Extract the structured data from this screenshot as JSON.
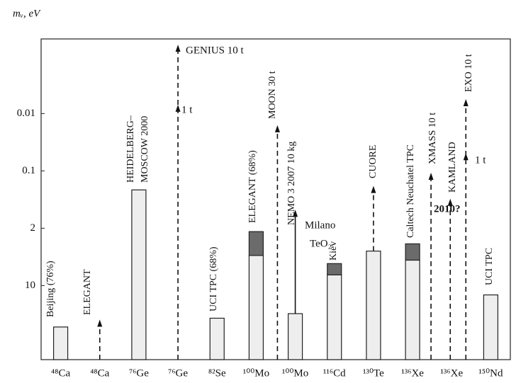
{
  "chart_data": {
    "type": "bar",
    "y_label": "mᵥ, eV",
    "categories": [
      "⁴⁸Ca",
      "⁴⁸Ca",
      "⁷⁶Ge",
      "⁷⁶Ge",
      "⁸²Se",
      "¹⁰⁰Mo",
      "¹⁰⁰Mo",
      "¹¹⁶Cd",
      "¹³⁰Te",
      "¹³⁶Xe",
      "¹³⁶Xe",
      "¹⁵⁰Nd"
    ],
    "series": [
      {
        "color": "#eeeeee",
        "values": [
          32,
          null,
          0.27,
          null,
          25,
          4.3,
          22,
          7.4,
          3.8,
          4.9,
          null,
          13
        ]
      },
      {
        "color": "#6b6b6b",
        "values": [
          null,
          null,
          null,
          null,
          null,
          2.2,
          null,
          5.4,
          null,
          3.1,
          null,
          null
        ]
      }
    ],
    "arrow_tips": [
      null,
      26,
      null,
      0.00063,
      null,
      0.016,
      0.76,
      null,
      0.22,
      0.11,
      0.43,
      null
    ],
    "arrow_mids": [
      null,
      null,
      null,
      0.007,
      null,
      null,
      null,
      null,
      null,
      null,
      null,
      null
    ],
    "arrow_line": [
      null,
      "dashed",
      null,
      "dashed",
      null,
      "dashed",
      "solid",
      null,
      "dashed",
      "dashed",
      "dashed",
      null
    ],
    "arrow_tips_2": [
      null,
      null,
      null,
      null,
      null,
      null,
      null,
      null,
      null,
      null,
      0.0056,
      null
    ],
    "arrow_mids_2": [
      null,
      null,
      null,
      null,
      null,
      null,
      null,
      null,
      null,
      null,
      0.049,
      null
    ],
    "ylim": [
      0.0005,
      80
    ],
    "yticks": [
      0.01,
      0.1,
      2,
      10
    ],
    "log_scale": true,
    "inverted": true,
    "annotations": [
      "Beijing (76%)",
      "ELEGANT",
      "HEIDELBERG–",
      "MOSCOW 2000",
      "GENIUS 10 t",
      "1 t",
      "UCI TPC (68%)",
      "ELEGANT (68%)",
      "MOON 30 t",
      "NEMO 3 2007 10 kg",
      "Milano",
      "TeO₂",
      "Kiev",
      "CUORE",
      "Caltech Neuchatel TPC",
      "XMASS 10 t",
      "KAMLAND",
      "2010?",
      "EXO 10 t",
      "1 t",
      "UCI TPC"
    ]
  }
}
